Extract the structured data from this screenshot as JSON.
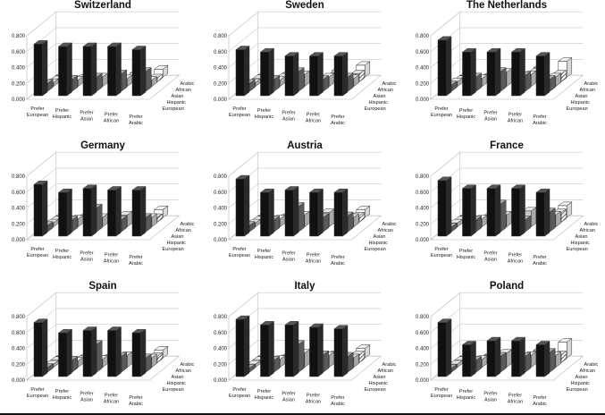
{
  "figure": {
    "baseline_color": "#111111"
  },
  "chart_data": {
    "type": "bar",
    "subtype": "3d-bar-grid",
    "y_ticks": [
      "0.000",
      "0.200",
      "0.400",
      "0.600",
      "0.800"
    ],
    "ylim": [
      0,
      0.8
    ],
    "x_categories": [
      [
        "Prefer",
        "European"
      ],
      [
        "Prefer",
        "Hispanic"
      ],
      [
        "Prefer",
        "Asian"
      ],
      [
        "Prefer",
        "African"
      ],
      [
        "Prefer",
        "Arabic"
      ]
    ],
    "depth_categories": [
      "European",
      "Hispanic",
      "Asian",
      "African",
      "Arabic"
    ],
    "series_patterns": [
      "black",
      "dark-gray",
      "light-gray",
      "striped",
      "white"
    ],
    "panels": [
      {
        "title": "Switzerland",
        "values": [
          [
            0.65,
            0.62,
            0.62,
            0.62,
            0.58
          ],
          [
            0.1,
            0.15,
            0.18,
            0.22,
            0.25
          ],
          [
            0.05,
            0.08,
            0.12,
            0.1,
            0.08
          ],
          [
            0.03,
            0.04,
            0.03,
            0.04,
            0.05
          ],
          [
            0.02,
            0.02,
            0.02,
            0.05,
            0.1
          ]
        ]
      },
      {
        "title": "Sweden",
        "values": [
          [
            0.58,
            0.55,
            0.5,
            0.5,
            0.5
          ],
          [
            0.1,
            0.15,
            0.25,
            0.15,
            0.18
          ],
          [
            0.05,
            0.08,
            0.15,
            0.12,
            0.1
          ],
          [
            0.04,
            0.06,
            0.08,
            0.07,
            0.1
          ],
          [
            0.03,
            0.05,
            0.06,
            0.08,
            0.15
          ]
        ]
      },
      {
        "title": "The Netherlands",
        "values": [
          [
            0.7,
            0.55,
            0.55,
            0.55,
            0.5
          ],
          [
            0.08,
            0.18,
            0.25,
            0.2,
            0.15
          ],
          [
            0.06,
            0.1,
            0.18,
            0.15,
            0.12
          ],
          [
            0.03,
            0.05,
            0.07,
            0.12,
            0.1
          ],
          [
            0.02,
            0.03,
            0.05,
            0.12,
            0.2
          ]
        ]
      },
      {
        "title": "Germany",
        "values": [
          [
            0.65,
            0.55,
            0.6,
            0.58,
            0.58
          ],
          [
            0.08,
            0.15,
            0.3,
            0.15,
            0.18
          ],
          [
            0.05,
            0.1,
            0.12,
            0.15,
            0.12
          ],
          [
            0.03,
            0.04,
            0.04,
            0.08,
            0.06
          ],
          [
            0.02,
            0.03,
            0.02,
            0.04,
            0.1
          ]
        ]
      },
      {
        "title": "Austria",
        "values": [
          [
            0.72,
            0.55,
            0.58,
            0.55,
            0.55
          ],
          [
            0.08,
            0.15,
            0.32,
            0.18,
            0.2
          ],
          [
            0.05,
            0.1,
            0.15,
            0.18,
            0.12
          ],
          [
            0.03,
            0.05,
            0.05,
            0.1,
            0.08
          ],
          [
            0.02,
            0.03,
            0.03,
            0.05,
            0.1
          ]
        ]
      },
      {
        "title": "France",
        "values": [
          [
            0.7,
            0.6,
            0.6,
            0.6,
            0.55
          ],
          [
            0.06,
            0.15,
            0.35,
            0.15,
            0.25
          ],
          [
            0.05,
            0.1,
            0.15,
            0.2,
            0.15
          ],
          [
            0.03,
            0.04,
            0.06,
            0.1,
            0.12
          ],
          [
            0.02,
            0.03,
            0.04,
            0.1,
            0.15
          ]
        ]
      },
      {
        "title": "Spain",
        "values": [
          [
            0.68,
            0.55,
            0.58,
            0.58,
            0.55
          ],
          [
            0.06,
            0.15,
            0.35,
            0.2,
            0.18
          ],
          [
            0.04,
            0.08,
            0.1,
            0.15,
            0.12
          ],
          [
            0.03,
            0.04,
            0.05,
            0.06,
            0.08
          ],
          [
            0.02,
            0.03,
            0.03,
            0.04,
            0.1
          ]
        ]
      },
      {
        "title": "Italy",
        "values": [
          [
            0.72,
            0.65,
            0.65,
            0.62,
            0.6
          ],
          [
            0.05,
            0.15,
            0.35,
            0.22,
            0.2
          ],
          [
            0.04,
            0.1,
            0.18,
            0.15,
            0.12
          ],
          [
            0.03,
            0.05,
            0.06,
            0.1,
            0.1
          ],
          [
            0.02,
            0.03,
            0.05,
            0.05,
            0.12
          ]
        ]
      },
      {
        "title": "Poland",
        "values": [
          [
            0.68,
            0.4,
            0.45,
            0.45,
            0.4
          ],
          [
            0.05,
            0.15,
            0.2,
            0.2,
            0.25
          ],
          [
            0.04,
            0.1,
            0.18,
            0.15,
            0.15
          ],
          [
            0.03,
            0.05,
            0.08,
            0.1,
            0.1
          ],
          [
            0.02,
            0.04,
            0.05,
            0.1,
            0.2
          ]
        ]
      }
    ]
  }
}
